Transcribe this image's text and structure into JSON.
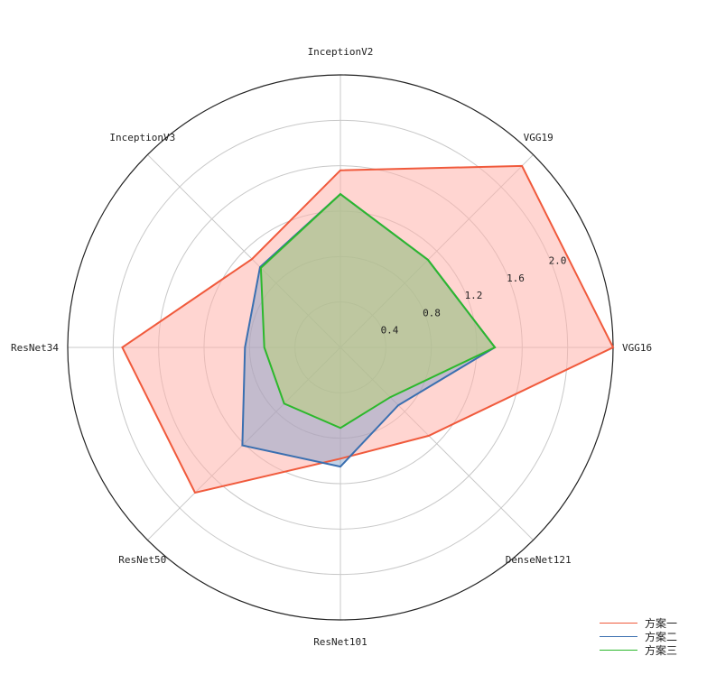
{
  "chart_data": {
    "type": "radar",
    "axes": [
      "VGG16",
      "VGG19",
      "InceptionV2",
      "InceptionV3",
      "ResNet34",
      "ResNet50",
      "ResNet101",
      "DenseNet121"
    ],
    "radial_ticks": [
      0.4,
      0.8,
      1.2,
      1.6,
      2.0
    ],
    "radial_range": [
      0,
      2.4
    ],
    "grid": true,
    "legend_position": "bottom-right",
    "series": [
      {
        "name": "方案一",
        "color": "#f05a3c",
        "fill": "#ffb3ab",
        "values": [
          2.4,
          2.26,
          1.56,
          1.1,
          1.92,
          1.81,
          0.98,
          1.1
        ]
      },
      {
        "name": "方案二",
        "color": "#3a6fb0",
        "fill": "#7a9cc8",
        "values": [
          1.36,
          1.09,
          1.35,
          1.0,
          0.84,
          1.22,
          1.05,
          0.72
        ]
      },
      {
        "name": "方案三",
        "color": "#2cb82c",
        "fill": "#b8d86a",
        "values": [
          1.36,
          1.09,
          1.35,
          0.99,
          0.67,
          0.7,
          0.71,
          0.62
        ]
      }
    ]
  }
}
